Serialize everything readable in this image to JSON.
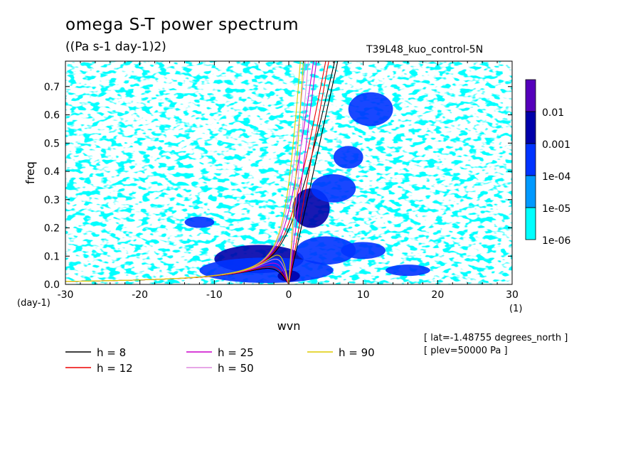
{
  "chart_data": {
    "type": "heatmap",
    "title": "omega S-T power spectrum",
    "subtitle": "((Pa s-1 day-1)2)",
    "run_label": "T39L48_kuo_control-5N",
    "xlabel": "wvn",
    "ylabel": "freq",
    "x_unit": "(1)",
    "y_unit": "(day-1)",
    "xlim": [
      -30,
      30
    ],
    "ylim": [
      0,
      0.79
    ],
    "x_ticks": [
      -30,
      -20,
      -10,
      0,
      10,
      20,
      30
    ],
    "x_tick_labels": [
      "-30",
      "-20",
      "-10",
      "0",
      "10",
      "20",
      "30"
    ],
    "y_ticks": [
      0.0,
      0.1,
      0.2,
      0.3,
      0.4,
      0.5,
      0.6,
      0.7
    ],
    "y_tick_labels": [
      "0.0",
      "0.1",
      "0.2",
      "0.3",
      "0.4",
      "0.5",
      "0.6",
      "0.7"
    ],
    "colorbar": {
      "levels": [
        "1e-06",
        "1e-05",
        "1e-04",
        "0.001",
        "0.01"
      ],
      "colors": [
        "#00ffff",
        "#0099ff",
        "#0033ff",
        "#0000aa",
        "#5500bb"
      ]
    },
    "spectrum_patches": [
      {
        "x": 3,
        "y": 0.27,
        "rx": 2.5,
        "ry": 0.07,
        "level": 3
      },
      {
        "x": -4,
        "y": 0.09,
        "rx": 6,
        "ry": 0.05,
        "level": 3
      },
      {
        "x": -3,
        "y": 0.05,
        "rx": 9,
        "ry": 0.045,
        "level": 2
      },
      {
        "x": 5,
        "y": 0.12,
        "rx": 4,
        "ry": 0.05,
        "level": 2
      },
      {
        "x": 0,
        "y": 0.03,
        "rx": 1.5,
        "ry": 0.02,
        "level": 3
      },
      {
        "x": 10,
        "y": 0.12,
        "rx": 3,
        "ry": 0.03,
        "level": 2
      },
      {
        "x": 16,
        "y": 0.05,
        "rx": 3,
        "ry": 0.02,
        "level": 2
      },
      {
        "x": 6,
        "y": 0.34,
        "rx": 3,
        "ry": 0.05,
        "level": 2
      },
      {
        "x": 11,
        "y": 0.62,
        "rx": 3,
        "ry": 0.06,
        "level": 2
      },
      {
        "x": 8,
        "y": 0.45,
        "rx": 2,
        "ry": 0.04,
        "level": 2
      },
      {
        "x": -12,
        "y": 0.22,
        "rx": 2,
        "ry": 0.02,
        "level": 2
      }
    ],
    "legend_placement": "bottom",
    "series": [
      {
        "name": "h =  8",
        "h": 8,
        "color": "#000000",
        "curves": [
          "kelvin",
          "er",
          "eig"
        ]
      },
      {
        "name": "h = 12",
        "h": 12,
        "color": "#ee0000",
        "curves": [
          "kelvin",
          "er",
          "eig"
        ]
      },
      {
        "name": "h = 25",
        "h": 25,
        "color": "#cc00cc",
        "curves": [
          "kelvin",
          "er",
          "eig"
        ]
      },
      {
        "name": "h = 50",
        "h": 50,
        "color": "#dd88dd",
        "curves": [
          "kelvin",
          "er",
          "eig"
        ]
      },
      {
        "name": "h = 90",
        "h": 90,
        "color": "#ddcc00",
        "curves": [
          "kelvin",
          "er",
          "eig"
        ]
      }
    ],
    "annotations": [
      "[ lat=-1.48755 degrees_north ]",
      "[ plev=50000 Pa ]"
    ]
  }
}
